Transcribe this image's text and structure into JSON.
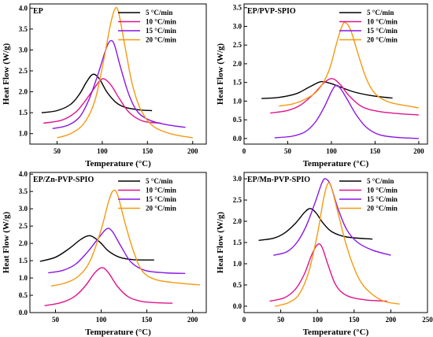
{
  "chart_data": [
    {
      "type": "line",
      "panel_label": "EP",
      "xlabel": "Temperature (°C)",
      "ylabel": "Heat Flow (W/g)",
      "xlim": [
        20,
        215
      ],
      "ylim": [
        0.75,
        4.1
      ],
      "xticks": [
        "50",
        "100",
        "150",
        "200"
      ],
      "xtick_values": [
        50,
        100,
        150,
        200
      ],
      "yticks": [
        "1.0",
        "1.5",
        "2.0",
        "2.5",
        "3.0",
        "3.5",
        "4.0"
      ],
      "ytick_values": [
        1.0,
        1.5,
        2.0,
        2.5,
        3.0,
        3.5,
        4.0
      ],
      "legend_position": "top-right",
      "series": [
        {
          "name": "5 °C/min",
          "color": "#000000",
          "points": [
            [
              33,
              1.5
            ],
            [
              50,
              1.55
            ],
            [
              65,
              1.7
            ],
            [
              75,
              1.95
            ],
            [
              83,
              2.25
            ],
            [
              90,
              2.42
            ],
            [
              97,
              2.3
            ],
            [
              105,
              2.0
            ],
            [
              115,
              1.75
            ],
            [
              125,
              1.63
            ],
            [
              140,
              1.57
            ],
            [
              155,
              1.55
            ]
          ]
        },
        {
          "name": "10 °C/min",
          "color": "#e0148c",
          "points": [
            [
              35,
              1.25
            ],
            [
              55,
              1.32
            ],
            [
              70,
              1.5
            ],
            [
              80,
              1.75
            ],
            [
              90,
              2.05
            ],
            [
              98,
              2.28
            ],
            [
              103,
              2.3
            ],
            [
              110,
              2.15
            ],
            [
              120,
              1.8
            ],
            [
              130,
              1.5
            ],
            [
              145,
              1.3
            ],
            [
              165,
              1.25
            ]
          ]
        },
        {
          "name": "15 °C/min",
          "color": "#8a16e6",
          "points": [
            [
              45,
              1.12
            ],
            [
              62,
              1.2
            ],
            [
              75,
              1.4
            ],
            [
              85,
              1.8
            ],
            [
              95,
              2.4
            ],
            [
              103,
              2.95
            ],
            [
              108,
              3.2
            ],
            [
              113,
              3.15
            ],
            [
              120,
              2.6
            ],
            [
              130,
              1.9
            ],
            [
              140,
              1.5
            ],
            [
              155,
              1.3
            ],
            [
              175,
              1.2
            ],
            [
              192,
              1.15
            ]
          ]
        },
        {
          "name": "20 °C/min",
          "color": "#f59a10",
          "points": [
            [
              50,
              0.9
            ],
            [
              65,
              1.0
            ],
            [
              80,
              1.25
            ],
            [
              92,
              1.8
            ],
            [
              102,
              2.8
            ],
            [
              109,
              3.6
            ],
            [
              114,
              3.98
            ],
            [
              118,
              3.9
            ],
            [
              125,
              3.1
            ],
            [
              133,
              2.2
            ],
            [
              142,
              1.6
            ],
            [
              155,
              1.2
            ],
            [
              175,
              1.0
            ],
            [
              200,
              0.9
            ]
          ]
        }
      ]
    },
    {
      "type": "line",
      "panel_label": "EP/PVP-SPIO",
      "xlabel": "Temperature (°C)",
      "ylabel": "Heat Flow (W/g)",
      "xlim": [
        0,
        210
      ],
      "ylim": [
        -0.15,
        3.6
      ],
      "xticks": [
        "0",
        "50",
        "100",
        "150",
        "200"
      ],
      "xtick_values": [
        0,
        50,
        100,
        150,
        200
      ],
      "yticks": [
        "0.0",
        "0.5",
        "1.0",
        "1.5",
        "2.0",
        "2.5",
        "3.0",
        "3.5"
      ],
      "ytick_values": [
        0,
        0.5,
        1.0,
        1.5,
        2.0,
        2.5,
        3.0,
        3.5
      ],
      "legend_position": "top-right",
      "series": [
        {
          "name": "5 °C/min",
          "color": "#000000",
          "points": [
            [
              20,
              1.07
            ],
            [
              40,
              1.1
            ],
            [
              60,
              1.2
            ],
            [
              75,
              1.38
            ],
            [
              88,
              1.52
            ],
            [
              98,
              1.48
            ],
            [
              110,
              1.38
            ],
            [
              125,
              1.25
            ],
            [
              145,
              1.15
            ],
            [
              170,
              1.08
            ]
          ]
        },
        {
          "name": "10 °C/min",
          "color": "#e0148c",
          "points": [
            [
              30,
              0.68
            ],
            [
              50,
              0.75
            ],
            [
              65,
              0.9
            ],
            [
              80,
              1.2
            ],
            [
              92,
              1.5
            ],
            [
              101,
              1.6
            ],
            [
              110,
              1.45
            ],
            [
              120,
              1.15
            ],
            [
              135,
              0.85
            ],
            [
              155,
              0.72
            ],
            [
              180,
              0.66
            ],
            [
              200,
              0.63
            ]
          ]
        },
        {
          "name": "15 °C/min",
          "color": "#8a16e6",
          "points": [
            [
              35,
              0.02
            ],
            [
              55,
              0.06
            ],
            [
              70,
              0.18
            ],
            [
              82,
              0.45
            ],
            [
              92,
              0.85
            ],
            [
              100,
              1.25
            ],
            [
              105,
              1.42
            ],
            [
              110,
              1.35
            ],
            [
              118,
              1.05
            ],
            [
              128,
              0.65
            ],
            [
              140,
              0.3
            ],
            [
              155,
              0.1
            ],
            [
              175,
              0.03
            ],
            [
              200,
              0.0
            ]
          ]
        },
        {
          "name": "20 °C/min",
          "color": "#f59a10",
          "points": [
            [
              40,
              0.87
            ],
            [
              55,
              0.92
            ],
            [
              70,
              1.05
            ],
            [
              85,
              1.3
            ],
            [
              97,
              1.8
            ],
            [
              106,
              2.55
            ],
            [
              112,
              3.0
            ],
            [
              116,
              3.1
            ],
            [
              122,
              2.9
            ],
            [
              130,
              2.3
            ],
            [
              140,
              1.6
            ],
            [
              150,
              1.2
            ],
            [
              165,
              0.98
            ],
            [
              185,
              0.88
            ],
            [
              200,
              0.82
            ]
          ]
        }
      ]
    },
    {
      "type": "line",
      "panel_label": "EP/Zn-PVP-SPIO",
      "xlabel": "Temperature (°C)",
      "ylabel": "Heat Flow (W/g)",
      "xlim": [
        22,
        215
      ],
      "ylim": [
        0.0,
        4.05
      ],
      "xticks": [
        "50",
        "100",
        "150",
        "200"
      ],
      "xtick_values": [
        50,
        100,
        150,
        200
      ],
      "yticks": [
        "0.0",
        "0.5",
        "1.0",
        "1.5",
        "2.0",
        "2.5",
        "3.0",
        "3.5",
        "4.0"
      ],
      "ytick_values": [
        0,
        0.5,
        1.0,
        1.5,
        2.0,
        2.5,
        3.0,
        3.5,
        4.0
      ],
      "legend_position": "top-right",
      "series": [
        {
          "name": "5 °C/min",
          "color": "#000000",
          "points": [
            [
              33,
              1.48
            ],
            [
              50,
              1.6
            ],
            [
              65,
              1.85
            ],
            [
              78,
              2.12
            ],
            [
              88,
              2.22
            ],
            [
              98,
              2.05
            ],
            [
              108,
              1.78
            ],
            [
              120,
              1.6
            ],
            [
              135,
              1.53
            ],
            [
              158,
              1.52
            ]
          ]
        },
        {
          "name": "10 °C/min",
          "color": "#e0148c",
          "points": [
            [
              38,
              0.2
            ],
            [
              55,
              0.28
            ],
            [
              70,
              0.45
            ],
            [
              82,
              0.75
            ],
            [
              93,
              1.15
            ],
            [
              101,
              1.3
            ],
            [
              108,
              1.15
            ],
            [
              118,
              0.75
            ],
            [
              130,
              0.45
            ],
            [
              145,
              0.32
            ],
            [
              165,
              0.28
            ],
            [
              178,
              0.27
            ]
          ]
        },
        {
          "name": "15 °C/min",
          "color": "#8a16e6",
          "points": [
            [
              42,
              1.15
            ],
            [
              58,
              1.22
            ],
            [
              72,
              1.4
            ],
            [
              85,
              1.75
            ],
            [
              97,
              2.15
            ],
            [
              106,
              2.42
            ],
            [
              112,
              2.35
            ],
            [
              122,
              1.9
            ],
            [
              133,
              1.45
            ],
            [
              148,
              1.22
            ],
            [
              170,
              1.15
            ],
            [
              192,
              1.13
            ]
          ]
        },
        {
          "name": "20 °C/min",
          "color": "#f59a10",
          "points": [
            [
              45,
              0.77
            ],
            [
              60,
              0.85
            ],
            [
              75,
              1.05
            ],
            [
              88,
              1.5
            ],
            [
              100,
              2.4
            ],
            [
              108,
              3.2
            ],
            [
              113,
              3.52
            ],
            [
              118,
              3.4
            ],
            [
              126,
              2.6
            ],
            [
              135,
              1.8
            ],
            [
              145,
              1.2
            ],
            [
              160,
              0.95
            ],
            [
              185,
              0.85
            ],
            [
              208,
              0.8
            ]
          ]
        }
      ]
    },
    {
      "type": "line",
      "panel_label": "EP/Mn-PVP-SPIO",
      "xlabel": "Temperature (°C)",
      "ylabel": "Heat Flow (W/g)",
      "xlim": [
        0,
        250
      ],
      "ylim": [
        -0.15,
        3.15
      ],
      "xticks": [
        "0",
        "50",
        "100",
        "150",
        "200",
        "250"
      ],
      "xtick_values": [
        0,
        50,
        100,
        150,
        200,
        250
      ],
      "yticks": [
        "0.0",
        "0.5",
        "1.0",
        "1.5",
        "2.0",
        "2.5",
        "3.0"
      ],
      "ytick_values": [
        0,
        0.5,
        1.0,
        1.5,
        2.0,
        2.5,
        3.0
      ],
      "legend_position": "top-right",
      "series": [
        {
          "name": "5 °C/min",
          "color": "#000000",
          "points": [
            [
              20,
              1.55
            ],
            [
              40,
              1.6
            ],
            [
              55,
              1.72
            ],
            [
              70,
              1.95
            ],
            [
              82,
              2.2
            ],
            [
              90,
              2.3
            ],
            [
              98,
              2.2
            ],
            [
              108,
              1.95
            ],
            [
              120,
              1.75
            ],
            [
              140,
              1.63
            ],
            [
              175,
              1.58
            ]
          ]
        },
        {
          "name": "10 °C/min",
          "color": "#e0148c",
          "points": [
            [
              35,
              0.12
            ],
            [
              55,
              0.2
            ],
            [
              70,
              0.4
            ],
            [
              82,
              0.75
            ],
            [
              92,
              1.2
            ],
            [
              100,
              1.45
            ],
            [
              106,
              1.4
            ],
            [
              114,
              1.0
            ],
            [
              125,
              0.5
            ],
            [
              140,
              0.25
            ],
            [
              165,
              0.15
            ],
            [
              195,
              0.12
            ]
          ]
        },
        {
          "name": "15 °C/min",
          "color": "#8a16e6",
          "points": [
            [
              40,
              1.2
            ],
            [
              58,
              1.28
            ],
            [
              72,
              1.5
            ],
            [
              85,
              1.9
            ],
            [
              97,
              2.45
            ],
            [
              106,
              2.9
            ],
            [
              111,
              3.0
            ],
            [
              118,
              2.85
            ],
            [
              128,
              2.3
            ],
            [
              140,
              1.8
            ],
            [
              155,
              1.5
            ],
            [
              175,
              1.32
            ],
            [
              200,
              1.2
            ]
          ]
        },
        {
          "name": "20 °C/min",
          "color": "#f59a10",
          "points": [
            [
              42,
              0.0
            ],
            [
              60,
              0.08
            ],
            [
              75,
              0.28
            ],
            [
              88,
              0.8
            ],
            [
              100,
              1.7
            ],
            [
              108,
              2.5
            ],
            [
              114,
              2.88
            ],
            [
              119,
              2.8
            ],
            [
              128,
              2.2
            ],
            [
              140,
              1.4
            ],
            [
              155,
              0.7
            ],
            [
              170,
              0.35
            ],
            [
              190,
              0.12
            ],
            [
              212,
              0.05
            ]
          ]
        }
      ]
    }
  ]
}
